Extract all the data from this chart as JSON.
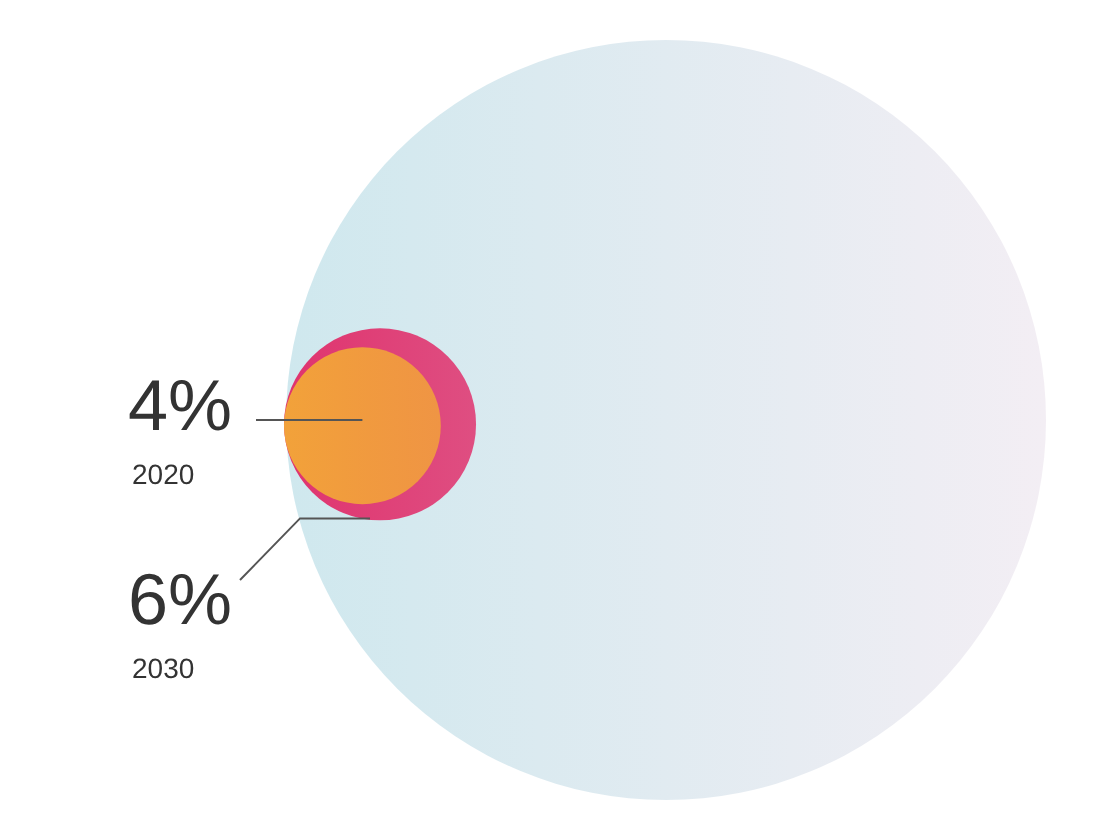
{
  "chart_data": {
    "type": "other",
    "categories": [
      "2020",
      "2030"
    ],
    "values": [
      4,
      6
    ],
    "value_labels": [
      "4%",
      "6%"
    ],
    "colors": [
      "#f2a23a",
      "#e0336e"
    ]
  }
}
